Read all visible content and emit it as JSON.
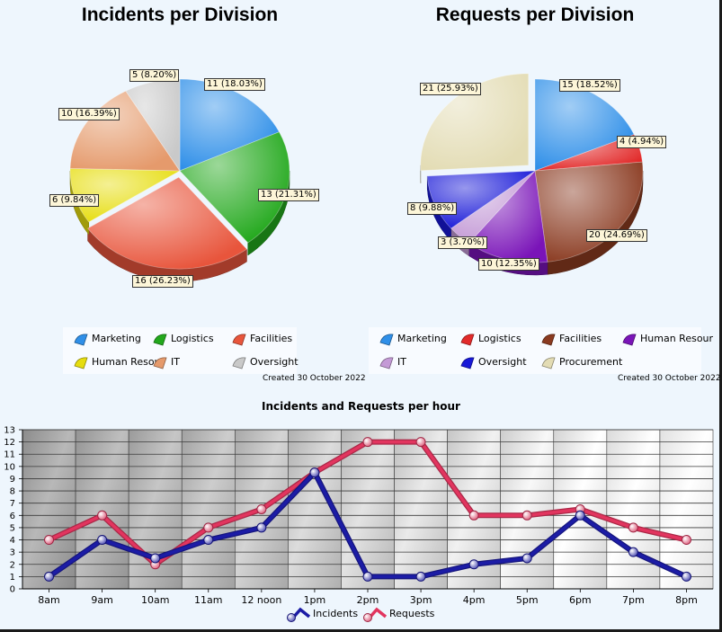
{
  "chart_data": [
    {
      "type": "pie",
      "title": "Incidents per Division",
      "slices": [
        {
          "name": "Marketing",
          "value": 11,
          "label": "11 (18.03%)",
          "color": "#2f8fe8"
        },
        {
          "name": "Logistics",
          "value": 13,
          "label": "13 (21.31%)",
          "color": "#22a81c"
        },
        {
          "name": "Facilities",
          "value": 16,
          "label": "16 (26.23%)",
          "color": "#e8553c"
        },
        {
          "name": "Human Resources",
          "value": 6,
          "label": "6 (9.84%)",
          "color": "#e6dd0e"
        },
        {
          "name": "IT",
          "value": 10,
          "label": "10 (16.39%)",
          "color": "#e59a6c"
        },
        {
          "name": "Oversight",
          "value": 5,
          "label": "5 (8.20%)",
          "color": "#c9c9c9"
        }
      ],
      "legend": [
        "Marketing",
        "Logistics",
        "Facilities",
        "Human Resour",
        "IT",
        "Oversight"
      ],
      "footer": "Created 30 October 2022"
    },
    {
      "type": "pie",
      "title": "Requests per Division",
      "slices": [
        {
          "name": "Marketing",
          "value": 15,
          "label": "15 (18.52%)",
          "color": "#2f8fe8"
        },
        {
          "name": "Logistics",
          "value": 4,
          "label": "4 (4.94%)",
          "color": "#e22a2a"
        },
        {
          "name": "Facilities",
          "value": 20,
          "label": "20 (24.69%)",
          "color": "#8a3a20"
        },
        {
          "name": "Human Resources",
          "value": 10,
          "label": "10 (12.35%)",
          "color": "#7a14b8"
        },
        {
          "name": "IT",
          "value": 3,
          "label": "3 (3.70%)",
          "color": "#c49ad6"
        },
        {
          "name": "Oversight",
          "value": 8,
          "label": "8 (9.88%)",
          "color": "#1818d8"
        },
        {
          "name": "Procurement",
          "value": 21,
          "label": "21 (25.93%)",
          "color": "#e3dcb4"
        }
      ],
      "legend": [
        "Marketing",
        "Logistics",
        "Facilities",
        "Human Resour",
        "IT",
        "Oversight",
        "Procurement"
      ],
      "footer": "Created 30 October 2022"
    },
    {
      "type": "line",
      "title": "Incidents and Requests per hour",
      "categories": [
        "8am",
        "9am",
        "10am",
        "11am",
        "12 noon",
        "1pm",
        "2pm",
        "3pm",
        "4pm",
        "5pm",
        "6pm",
        "7pm",
        "8pm"
      ],
      "series": [
        {
          "name": "Incidents",
          "values": [
            1,
            4,
            2.5,
            4,
            5,
            9.5,
            1,
            1,
            2,
            2.5,
            6,
            3,
            1
          ],
          "color": "#1c1ca6"
        },
        {
          "name": "Requests",
          "values": [
            4,
            6,
            2,
            5,
            6.5,
            9.5,
            12,
            12,
            6,
            6,
            6.5,
            5,
            4
          ],
          "color": "#e2355f"
        }
      ],
      "ylim": [
        0,
        13
      ],
      "yticks": [
        0,
        1,
        2,
        3,
        4,
        5,
        6,
        7,
        8,
        9,
        10,
        11,
        12,
        13
      ],
      "grid": true,
      "legend_position": "bottom"
    }
  ]
}
